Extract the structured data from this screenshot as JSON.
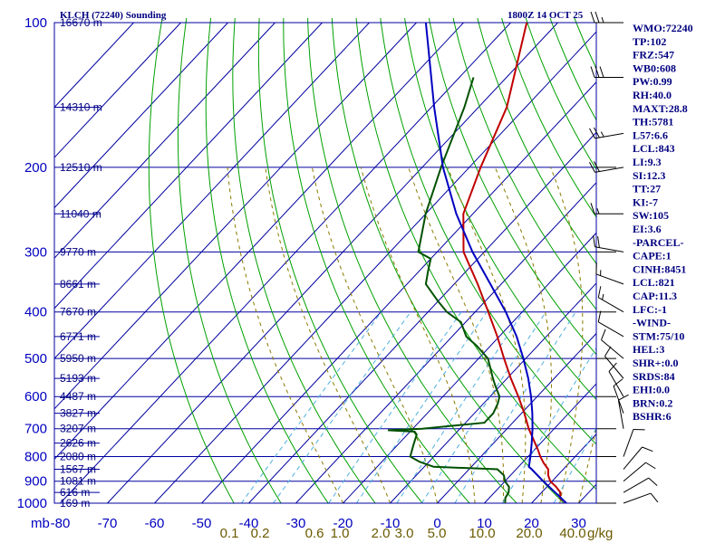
{
  "chart_data": {
    "type": "skew-t",
    "title": "KLCH (72240) Sounding",
    "valid_time": "1800Z 14 OCT 25",
    "pressure_unit": "mb",
    "mixing_ratio_unit": "g/kg",
    "pressure_range": [
      1000,
      100
    ],
    "temperature_range": [
      -80,
      30
    ],
    "pressure_levels": [
      100,
      200,
      300,
      400,
      500,
      600,
      700,
      800,
      900,
      1000
    ],
    "temperature_ticks": [
      -80,
      -70,
      -60,
      -50,
      -40,
      -30,
      -20,
      -10,
      0,
      10,
      20,
      30
    ],
    "mixing_ratio_labels": [
      "0.1",
      "0.2",
      "0.6",
      "1.0",
      "2.0",
      "3.0",
      "5.0",
      "10.0",
      "20.0",
      "40.0"
    ],
    "height_labels": [
      {
        "p": 100,
        "text": "16670 m"
      },
      {
        "p": 150,
        "text": "14310 m"
      },
      {
        "p": 200,
        "text": "12510 m"
      },
      {
        "p": 250,
        "text": "11040 m"
      },
      {
        "p": 300,
        "text": "9770 m"
      },
      {
        "p": 350,
        "text": "8661 m"
      },
      {
        "p": 400,
        "text": "7670 m"
      },
      {
        "p": 450,
        "text": "6771 m"
      },
      {
        "p": 500,
        "text": "5950 m"
      },
      {
        "p": 550,
        "text": "5193 m"
      },
      {
        "p": 600,
        "text": "4487 m"
      },
      {
        "p": 650,
        "text": "3827 m"
      },
      {
        "p": 700,
        "text": "3207 m"
      },
      {
        "p": 750,
        "text": "2626 m"
      },
      {
        "p": 800,
        "text": "2080 m"
      },
      {
        "p": 850,
        "text": "1567 m"
      },
      {
        "p": 900,
        "text": "1081 m"
      },
      {
        "p": 950,
        "text": "616 m"
      },
      {
        "p": 1000,
        "text": "169 m"
      }
    ],
    "series": [
      {
        "name": "temperature",
        "color": "#c00000",
        "points": [
          [
            1000,
            27.4
          ],
          [
            975,
            25
          ],
          [
            950,
            24
          ],
          [
            925,
            22
          ],
          [
            900,
            19.6
          ],
          [
            875,
            18
          ],
          [
            850,
            16.8
          ],
          [
            825,
            14.6
          ],
          [
            800,
            12.6
          ],
          [
            775,
            10.8
          ],
          [
            750,
            8.8
          ],
          [
            700,
            4.6
          ],
          [
            650,
            0.6
          ],
          [
            600,
            -4
          ],
          [
            550,
            -9.2
          ],
          [
            500,
            -14.6
          ],
          [
            450,
            -20.4
          ],
          [
            400,
            -27.2
          ],
          [
            350,
            -35
          ],
          [
            300,
            -44.4
          ],
          [
            250,
            -52
          ],
          [
            200,
            -57.6
          ],
          [
            150,
            -64
          ],
          [
            100,
            -76.6
          ]
        ]
      },
      {
        "name": "dewpoint",
        "color": "#005000",
        "points": [
          [
            1000,
            14.4
          ],
          [
            975,
            13.4
          ],
          [
            950,
            13
          ],
          [
            925,
            12
          ],
          [
            900,
            10
          ],
          [
            875,
            8.6
          ],
          [
            850,
            6
          ],
          [
            840,
            -8
          ],
          [
            820,
            -12
          ],
          [
            800,
            -15
          ],
          [
            760,
            -16.5
          ],
          [
            720,
            -18
          ],
          [
            710,
            -19
          ],
          [
            705,
            -25
          ],
          [
            700,
            -18
          ],
          [
            680,
            -6
          ],
          [
            650,
            -6
          ],
          [
            620,
            -7
          ],
          [
            600,
            -8
          ],
          [
            570,
            -11
          ],
          [
            550,
            -13
          ],
          [
            500,
            -18
          ],
          [
            470,
            -23
          ],
          [
            450,
            -27
          ],
          [
            420,
            -31
          ],
          [
            400,
            -36
          ],
          [
            380,
            -40
          ],
          [
            350,
            -46
          ],
          [
            330,
            -48
          ],
          [
            310,
            -50
          ],
          [
            300,
            -54
          ],
          [
            250,
            -60
          ],
          [
            200,
            -66
          ],
          [
            150,
            -73
          ],
          [
            130,
            -77
          ]
        ]
      },
      {
        "name": "parcel",
        "color": "#0000c0",
        "points": [
          [
            1000,
            27.4
          ],
          [
            950,
            22.9
          ],
          [
            900,
            18.1
          ],
          [
            850,
            13.3
          ],
          [
            840,
            12.2
          ],
          [
            800,
            10.5
          ],
          [
            750,
            8.1
          ],
          [
            700,
            5.4
          ],
          [
            650,
            2.3
          ],
          [
            600,
            -1.3
          ],
          [
            550,
            -5.5
          ],
          [
            500,
            -10.5
          ],
          [
            450,
            -16.3
          ],
          [
            400,
            -23.5
          ],
          [
            350,
            -32.3
          ],
          [
            300,
            -42.5
          ],
          [
            250,
            -53.5
          ],
          [
            200,
            -65.6
          ],
          [
            150,
            -79.4
          ],
          [
            100,
            -98
          ]
        ]
      }
    ],
    "wind_barbs": [
      {
        "p": 100,
        "dir": 270,
        "speed": 25
      },
      {
        "p": 130,
        "dir": 270,
        "speed": 30
      },
      {
        "p": 170,
        "dir": 260,
        "speed": 25
      },
      {
        "p": 200,
        "dir": 260,
        "speed": 20
      },
      {
        "p": 250,
        "dir": 270,
        "speed": 15
      },
      {
        "p": 300,
        "dir": 280,
        "speed": 20
      },
      {
        "p": 350,
        "dir": 290,
        "speed": 15
      },
      {
        "p": 400,
        "dir": 300,
        "speed": 15
      },
      {
        "p": 450,
        "dir": 300,
        "speed": 10
      },
      {
        "p": 500,
        "dir": 310,
        "speed": 10
      },
      {
        "p": 550,
        "dir": 320,
        "speed": 10
      },
      {
        "p": 600,
        "dir": 330,
        "speed": 10
      },
      {
        "p": 650,
        "dir": 340,
        "speed": 10
      },
      {
        "p": 700,
        "dir": 350,
        "speed": 10
      },
      {
        "p": 800,
        "dir": 20,
        "speed": 10
      },
      {
        "p": 850,
        "dir": 40,
        "speed": 10
      },
      {
        "p": 900,
        "dir": 50,
        "speed": 10
      },
      {
        "p": 950,
        "dir": 60,
        "speed": 10
      },
      {
        "p": 1000,
        "dir": 70,
        "speed": 10
      }
    ],
    "indices": [
      "WMO:72240",
      "TP:102",
      "FRZ:547",
      "WB0:608",
      "PW:0.99",
      "RH:40.0",
      "MAXT:28.8",
      "TH:5781",
      "L57:6.6",
      "LCL:843",
      "LI:9.3",
      "SI:12.3",
      "TT:27",
      "KI:-7",
      "SW:105",
      "EI:3.6",
      "-PARCEL-",
      "CAPE:1",
      "CINH:8451",
      "LCL:821",
      "CAP:11.3",
      "LFC:-1",
      "-WIND-",
      "STM:75/10",
      "HEL:3",
      "SHR+:0.0",
      "SRDS:84",
      "EHI:0.0",
      "BRN:0.2",
      "BSHR:6"
    ],
    "colors": {
      "isobar": "#0000a0",
      "isotherm": "#0000a0",
      "dry_adiabat": "#00a000",
      "moist_adiabat": "#8a7a00",
      "mixing_ratio": "#4fb0e0",
      "labels": "#000080",
      "axis_text": "#0000c0",
      "mix_text": "#6b5a00"
    }
  }
}
